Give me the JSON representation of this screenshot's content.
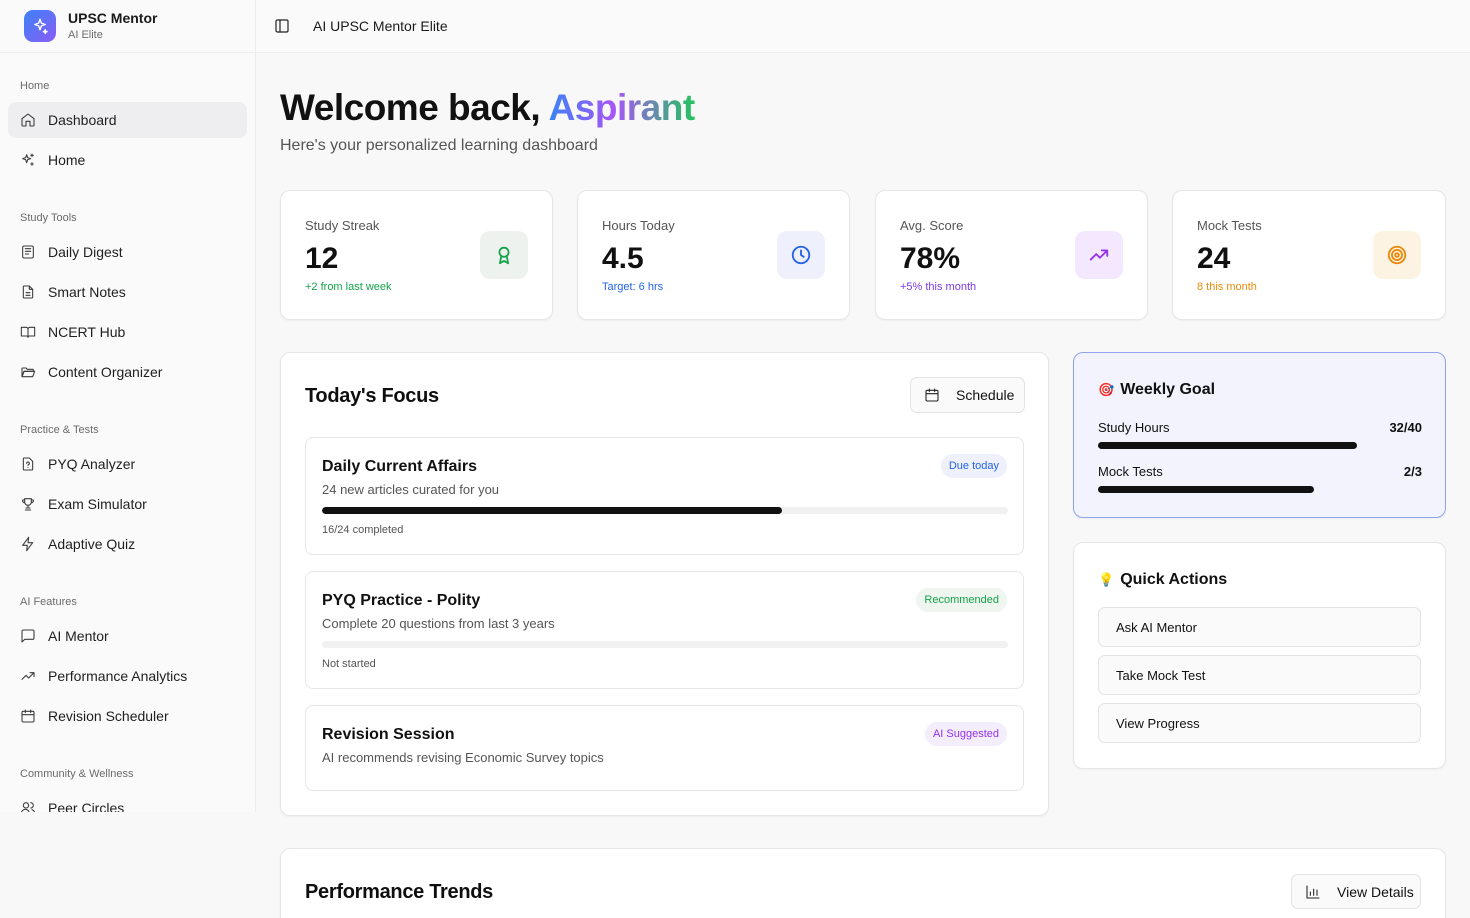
{
  "brand": {
    "title": "UPSC Mentor",
    "subtitle": "AI Elite"
  },
  "topbar": {
    "title": "AI UPSC Mentor Elite"
  },
  "sidebar": {
    "groups": [
      {
        "label": "Home",
        "items": [
          {
            "label": "Dashboard",
            "icon": "home-icon",
            "active": true
          },
          {
            "label": "Home",
            "icon": "sparkles-icon"
          }
        ]
      },
      {
        "label": "Study Tools",
        "items": [
          {
            "label": "Daily Digest",
            "icon": "newspaper-icon"
          },
          {
            "label": "Smart Notes",
            "icon": "file-text-icon"
          },
          {
            "label": "NCERT Hub",
            "icon": "book-open-icon"
          },
          {
            "label": "Content Organizer",
            "icon": "folder-open-icon"
          }
        ]
      },
      {
        "label": "Practice & Tests",
        "items": [
          {
            "label": "PYQ Analyzer",
            "icon": "file-question-icon"
          },
          {
            "label": "Exam Simulator",
            "icon": "trophy-icon"
          },
          {
            "label": "Adaptive Quiz",
            "icon": "zap-icon"
          }
        ]
      },
      {
        "label": "AI Features",
        "items": [
          {
            "label": "AI Mentor",
            "icon": "message-square-icon"
          },
          {
            "label": "Performance Analytics",
            "icon": "trending-up-icon"
          },
          {
            "label": "Revision Scheduler",
            "icon": "calendar-icon"
          }
        ]
      },
      {
        "label": "Community & Wellness",
        "items": [
          {
            "label": "Peer Circles",
            "icon": "users-icon"
          }
        ]
      }
    ]
  },
  "welcome": {
    "prefix": "Welcome back, ",
    "name": "Aspirant",
    "subtitle": "Here's your personalized learning dashboard"
  },
  "stats": [
    {
      "label": "Study Streak",
      "value": "12",
      "note": "+2 from last week",
      "note_color": "#16a34a",
      "icon": "award-icon",
      "icon_bg": "#eef2ee",
      "icon_color": "#16a34a"
    },
    {
      "label": "Hours Today",
      "value": "4.5",
      "note": "Target: 6 hrs",
      "note_color": "#2563eb",
      "icon": "clock-icon",
      "icon_bg": "#eef0fb",
      "icon_color": "#2563eb"
    },
    {
      "label": "Avg. Score",
      "value": "78%",
      "note": "+5% this month",
      "note_color": "#7c3aed",
      "icon": "trending-up-icon",
      "icon_bg": "#f3e8fd",
      "icon_color": "#9333ea"
    },
    {
      "label": "Mock Tests",
      "value": "24",
      "note": "8 this month",
      "note_color": "#ea8a0c",
      "icon": "target-icon",
      "icon_bg": "#fdf3e3",
      "icon_color": "#ea8a0c"
    }
  ],
  "focus": {
    "title": "Today's Focus",
    "schedule_label": "Schedule",
    "tasks": [
      {
        "title": "Daily Current Affairs",
        "desc": "24 new articles curated for you",
        "badge": "Due today",
        "badge_bg": "#eef1fb",
        "badge_color": "#2563eb",
        "progress": 0.67,
        "progress_text": "16/24 completed"
      },
      {
        "title": "PYQ Practice - Polity",
        "desc": "Complete 20 questions from last 3 years",
        "badge": "Recommended",
        "badge_bg": "#eef6ef",
        "badge_color": "#16a34a",
        "progress": 0.0,
        "progress_text": "Not started"
      },
      {
        "title": "Revision Session",
        "desc": "AI recommends revising Economic Survey topics",
        "badge": "AI Suggested",
        "badge_bg": "#f4edfc",
        "badge_color": "#9333ea"
      }
    ]
  },
  "weekly_goal": {
    "emoji": "🎯",
    "title": "Weekly Goal",
    "rows": [
      {
        "label": "Study Hours",
        "value": "32/40",
        "progress": 0.8
      },
      {
        "label": "Mock Tests",
        "value": "2/3",
        "progress": 0.667
      }
    ]
  },
  "quick_actions": {
    "emoji": "💡",
    "title": "Quick Actions",
    "items": [
      "Ask AI Mentor",
      "Take Mock Test",
      "View Progress"
    ]
  },
  "trends": {
    "title": "Performance Trends",
    "button_label": "View Details"
  }
}
